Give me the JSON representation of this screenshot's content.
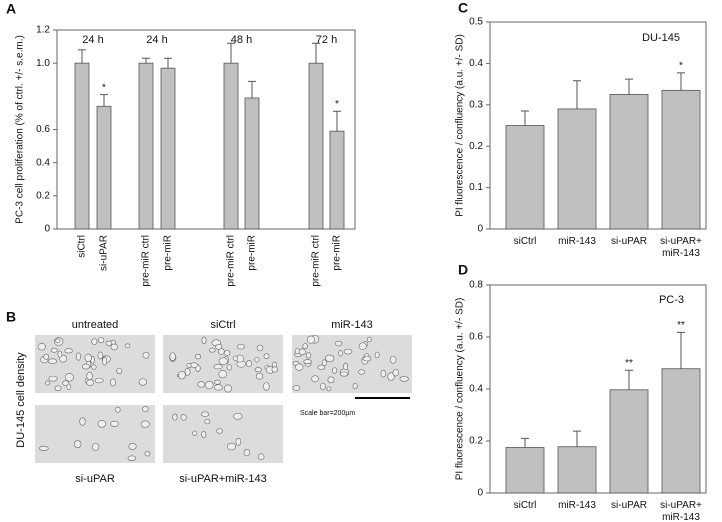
{
  "panel_labels": [
    "A",
    "B",
    "C",
    "D"
  ],
  "chart_data": [
    {
      "type": "bar",
      "ylabel": "PC-3 cell proliferation (% of ctrl. +/- s.e.m.)",
      "groups": [
        "24 h",
        "24 h",
        "48 h",
        "72 h"
      ],
      "categories": [
        "siCtrl",
        "si-uPAR",
        "pre-miR ctrl",
        "pre-miR",
        "pre-miR ctrl",
        "pre-miR",
        "pre-miR ctrl",
        "pre-miR"
      ],
      "values": [
        1.0,
        0.74,
        1.0,
        0.97,
        1.0,
        0.79,
        1.0,
        0.59
      ],
      "errors": [
        0.08,
        0.07,
        0.03,
        0.06,
        0.12,
        0.1,
        0.12,
        0.12
      ],
      "significance": [
        null,
        "*",
        null,
        null,
        null,
        null,
        null,
        "*"
      ],
      "color": "#c0c0c0",
      "ylim": [
        0,
        1.2
      ],
      "yticks": [
        0,
        0.2,
        0.4,
        0.6,
        {
          "value": 1.0,
          "label": "1.0"
        },
        1.2
      ]
    },
    {
      "type": "bar",
      "ylabel": "PI fluorescence / confluency (a.u. +/- SD)",
      "annotation": "DU-145",
      "categories": [
        "siCtrl",
        "miR-143",
        "si-uPAR",
        "si-uPAR+\nmiR-143"
      ],
      "values": [
        0.25,
        0.29,
        0.325,
        0.335
      ],
      "errors": [
        0.035,
        0.068,
        0.037,
        0.042
      ],
      "significance": [
        null,
        null,
        null,
        "*"
      ],
      "color": "#c0c0c0",
      "ylim": [
        0,
        0.5
      ],
      "yticks": [
        0,
        0.1,
        0.2,
        0.3,
        0.4,
        0.5
      ]
    },
    {
      "type": "bar",
      "ylabel": "PI fluorescence / confluency (a.u. +/- SD)",
      "annotation": "PC-3",
      "categories": [
        "siCtrl",
        "miR-143",
        "si-uPAR",
        "si-uPAR+\nmiR-143"
      ],
      "values": [
        0.175,
        0.178,
        0.397,
        0.478
      ],
      "errors": [
        0.035,
        0.06,
        0.075,
        0.14
      ],
      "significance": [
        null,
        null,
        "**",
        "**"
      ],
      "color": "#c0c0c0",
      "ylim": [
        0,
        0.8
      ],
      "yticks": [
        0,
        0.2,
        0.4,
        0.6,
        0.8
      ]
    }
  ],
  "image_panel": {
    "ylabel": "DU-145 cell density",
    "images": [
      "untreated",
      "siCtrl",
      "miR-143",
      "si-uPAR",
      "si-uPAR+miR-143"
    ],
    "scale_bar": "Scale bar=200µm"
  }
}
